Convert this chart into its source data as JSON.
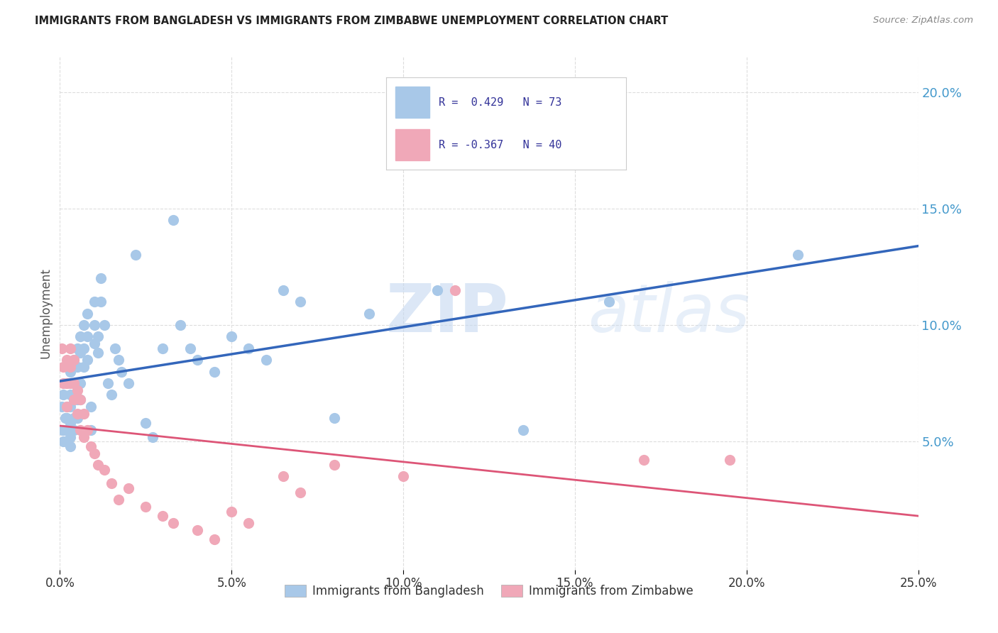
{
  "title": "IMMIGRANTS FROM BANGLADESH VS IMMIGRANTS FROM ZIMBABWE UNEMPLOYMENT CORRELATION CHART",
  "source": "Source: ZipAtlas.com",
  "ylabel": "Unemployment",
  "ytick_values": [
    0.05,
    0.1,
    0.15,
    0.2
  ],
  "xlim": [
    0.0,
    0.25
  ],
  "ylim": [
    -0.005,
    0.215
  ],
  "legend_label1": "R =  0.429   N = 73",
  "legend_label2": "R = -0.367   N = 40",
  "legend_bottom1": "Immigrants from Bangladesh",
  "legend_bottom2": "Immigrants from Zimbabwe",
  "color_bangladesh": "#a8c8e8",
  "color_zimbabwe": "#f0a8b8",
  "trendline_color_bangladesh": "#3366bb",
  "trendline_color_zimbabwe": "#dd5577",
  "watermark_zip": "ZIP",
  "watermark_atlas": "atlas",
  "bangladesh_x": [
    0.0005,
    0.0008,
    0.001,
    0.001,
    0.001,
    0.0015,
    0.002,
    0.002,
    0.002,
    0.002,
    0.002,
    0.003,
    0.003,
    0.003,
    0.003,
    0.003,
    0.003,
    0.004,
    0.004,
    0.004,
    0.004,
    0.004,
    0.005,
    0.005,
    0.005,
    0.005,
    0.005,
    0.006,
    0.006,
    0.006,
    0.006,
    0.007,
    0.007,
    0.007,
    0.008,
    0.008,
    0.008,
    0.009,
    0.009,
    0.01,
    0.01,
    0.01,
    0.011,
    0.011,
    0.012,
    0.012,
    0.013,
    0.014,
    0.015,
    0.016,
    0.017,
    0.018,
    0.02,
    0.022,
    0.025,
    0.027,
    0.03,
    0.033,
    0.035,
    0.038,
    0.04,
    0.045,
    0.05,
    0.055,
    0.06,
    0.065,
    0.07,
    0.08,
    0.09,
    0.11,
    0.135,
    0.16,
    0.215
  ],
  "bangladesh_y": [
    0.065,
    0.055,
    0.07,
    0.055,
    0.05,
    0.06,
    0.075,
    0.065,
    0.06,
    0.055,
    0.05,
    0.08,
    0.07,
    0.065,
    0.058,
    0.052,
    0.048,
    0.085,
    0.075,
    0.068,
    0.06,
    0.055,
    0.09,
    0.082,
    0.075,
    0.068,
    0.06,
    0.095,
    0.088,
    0.075,
    0.068,
    0.1,
    0.09,
    0.082,
    0.105,
    0.095,
    0.085,
    0.065,
    0.055,
    0.11,
    0.1,
    0.092,
    0.095,
    0.088,
    0.12,
    0.11,
    0.1,
    0.075,
    0.07,
    0.09,
    0.085,
    0.08,
    0.075,
    0.13,
    0.058,
    0.052,
    0.09,
    0.145,
    0.1,
    0.09,
    0.085,
    0.08,
    0.095,
    0.09,
    0.085,
    0.115,
    0.11,
    0.06,
    0.105,
    0.115,
    0.055,
    0.11,
    0.13
  ],
  "zimbabwe_x": [
    0.0005,
    0.001,
    0.001,
    0.002,
    0.002,
    0.002,
    0.003,
    0.003,
    0.003,
    0.004,
    0.004,
    0.004,
    0.005,
    0.005,
    0.006,
    0.006,
    0.007,
    0.007,
    0.008,
    0.009,
    0.01,
    0.011,
    0.013,
    0.015,
    0.017,
    0.02,
    0.025,
    0.03,
    0.033,
    0.04,
    0.045,
    0.05,
    0.055,
    0.065,
    0.07,
    0.08,
    0.1,
    0.115,
    0.17,
    0.195
  ],
  "zimbabwe_y": [
    0.09,
    0.082,
    0.075,
    0.085,
    0.075,
    0.065,
    0.09,
    0.082,
    0.075,
    0.085,
    0.075,
    0.068,
    0.072,
    0.062,
    0.068,
    0.055,
    0.062,
    0.052,
    0.055,
    0.048,
    0.045,
    0.04,
    0.038,
    0.032,
    0.025,
    0.03,
    0.022,
    0.018,
    0.015,
    0.012,
    0.008,
    0.02,
    0.015,
    0.035,
    0.028,
    0.04,
    0.035,
    0.115,
    0.042,
    0.042
  ],
  "grid_color": "#dddddd",
  "background_color": "#ffffff",
  "ytick_color": "#4499cc",
  "xtick_color": "#333333"
}
